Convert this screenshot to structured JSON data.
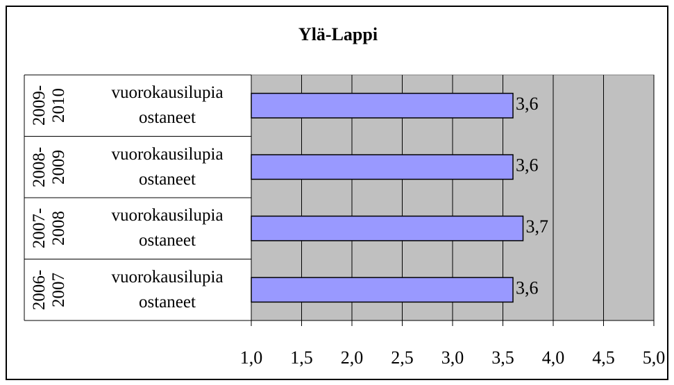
{
  "chart_data": {
    "type": "bar",
    "orientation": "horizontal",
    "title": "Ylä-Lappi",
    "groups": [
      "2009-2010",
      "2008-2009",
      "2007-2008",
      "2006-2007"
    ],
    "categories": [
      "vuorokausilupia ostaneet",
      "vuorokausilupia ostaneet",
      "vuorokausilupia ostaneet",
      "vuorokausilupia ostaneet"
    ],
    "values": [
      3.6,
      3.6,
      3.7,
      3.6
    ],
    "value_labels": [
      "3,6",
      "3,6",
      "3,7",
      "3,6"
    ],
    "color": "#9999ff",
    "xlim": [
      1,
      5
    ],
    "xticks": [
      {
        "value": 1,
        "label": "1,0"
      },
      {
        "value": 1.5,
        "label": "1,5"
      },
      {
        "value": 2,
        "label": "2,0"
      },
      {
        "value": 2.5,
        "label": "2,5"
      },
      {
        "value": 3,
        "label": "3,0"
      },
      {
        "value": 3.5,
        "label": "3,5"
      },
      {
        "value": 4,
        "label": "4,0"
      },
      {
        "value": 4.5,
        "label": "4,5"
      },
      {
        "value": 5,
        "label": "5,0"
      }
    ],
    "grid": true
  }
}
